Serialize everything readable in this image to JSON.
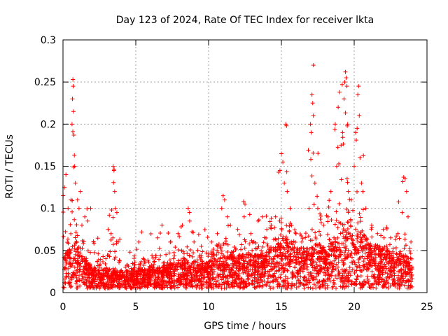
{
  "chart_data": {
    "type": "scatter",
    "title": "Day 123 of 2024, Rate Of TEC Index for receiver lkta",
    "xlabel": "GPS time / hours",
    "ylabel": "ROTI / TECUs",
    "xlim": [
      0,
      25
    ],
    "ylim": [
      0,
      0.3
    ],
    "x_ticks": [
      0,
      5,
      10,
      15,
      20,
      25
    ],
    "x_tick_labels": [
      "0",
      "5",
      "10",
      "15",
      "20",
      "25"
    ],
    "y_ticks": [
      0,
      0.05,
      0.1,
      0.15,
      0.2,
      0.25,
      0.3
    ],
    "y_tick_labels": [
      "0",
      "0.05",
      "0.1",
      "0.15",
      "0.2",
      "0.25",
      "0.3"
    ],
    "grid": true,
    "marker": "+",
    "marker_color": "#ff0000",
    "x_span_hours": [
      0,
      24
    ],
    "envelope": [
      {
        "x": 0.0,
        "low": 0.005,
        "typ": 0.03,
        "max": 0.12
      },
      {
        "x": 0.5,
        "low": 0.005,
        "typ": 0.035,
        "max": 0.15
      },
      {
        "x": 0.7,
        "low": 0.005,
        "typ": 0.04,
        "max": 0.25
      },
      {
        "x": 1.0,
        "low": 0.005,
        "typ": 0.035,
        "max": 0.12
      },
      {
        "x": 2.0,
        "low": 0.005,
        "typ": 0.02,
        "max": 0.09
      },
      {
        "x": 3.0,
        "low": 0.005,
        "typ": 0.02,
        "max": 0.07
      },
      {
        "x": 3.5,
        "low": 0.005,
        "typ": 0.02,
        "max": 0.15
      },
      {
        "x": 4.0,
        "low": 0.005,
        "typ": 0.018,
        "max": 0.05
      },
      {
        "x": 6.0,
        "low": 0.005,
        "typ": 0.02,
        "max": 0.07
      },
      {
        "x": 8.0,
        "low": 0.005,
        "typ": 0.025,
        "max": 0.08
      },
      {
        "x": 8.5,
        "low": 0.005,
        "typ": 0.025,
        "max": 0.1
      },
      {
        "x": 10.0,
        "low": 0.005,
        "typ": 0.025,
        "max": 0.07
      },
      {
        "x": 11.0,
        "low": 0.005,
        "typ": 0.03,
        "max": 0.11
      },
      {
        "x": 12.0,
        "low": 0.005,
        "typ": 0.03,
        "max": 0.08
      },
      {
        "x": 12.5,
        "low": 0.005,
        "typ": 0.03,
        "max": 0.11
      },
      {
        "x": 13.5,
        "low": 0.005,
        "typ": 0.03,
        "max": 0.09
      },
      {
        "x": 15.0,
        "low": 0.005,
        "typ": 0.04,
        "max": 0.16
      },
      {
        "x": 15.3,
        "low": 0.005,
        "typ": 0.045,
        "max": 0.2
      },
      {
        "x": 16.0,
        "low": 0.005,
        "typ": 0.035,
        "max": 0.08
      },
      {
        "x": 17.0,
        "low": 0.005,
        "typ": 0.035,
        "max": 0.19
      },
      {
        "x": 17.2,
        "low": 0.005,
        "typ": 0.04,
        "max": 0.27
      },
      {
        "x": 18.0,
        "low": 0.005,
        "typ": 0.035,
        "max": 0.1
      },
      {
        "x": 19.0,
        "low": 0.005,
        "typ": 0.045,
        "max": 0.24
      },
      {
        "x": 19.5,
        "low": 0.005,
        "typ": 0.05,
        "max": 0.26
      },
      {
        "x": 20.0,
        "low": 0.005,
        "typ": 0.045,
        "max": 0.16
      },
      {
        "x": 20.3,
        "low": 0.005,
        "typ": 0.05,
        "max": 0.25
      },
      {
        "x": 21.0,
        "low": 0.005,
        "typ": 0.04,
        "max": 0.09
      },
      {
        "x": 22.0,
        "low": 0.005,
        "typ": 0.035,
        "max": 0.08
      },
      {
        "x": 23.5,
        "low": 0.005,
        "typ": 0.03,
        "max": 0.14
      },
      {
        "x": 24.0,
        "low": 0.005,
        "typ": 0.025,
        "max": 0.06
      }
    ],
    "points": [
      [
        0.1,
        0.125
      ],
      [
        0.2,
        0.14
      ],
      [
        0.35,
        0.1
      ],
      [
        0.55,
        0.11
      ],
      [
        0.62,
        0.2
      ],
      [
        0.65,
        0.23
      ],
      [
        0.68,
        0.253
      ],
      [
        0.7,
        0.245
      ],
      [
        0.72,
        0.215
      ],
      [
        0.75,
        0.187
      ],
      [
        0.78,
        0.163
      ],
      [
        0.8,
        0.15
      ],
      [
        0.85,
        0.13
      ],
      [
        1.0,
        0.11
      ],
      [
        1.1,
        0.1
      ],
      [
        1.2,
        0.12
      ],
      [
        1.3,
        0.08
      ],
      [
        1.5,
        0.09
      ],
      [
        1.7,
        0.085
      ],
      [
        1.9,
        0.1
      ],
      [
        2.1,
        0.06
      ],
      [
        2.5,
        0.03
      ],
      [
        3.1,
        0.075
      ],
      [
        3.3,
        0.07
      ],
      [
        3.45,
        0.15
      ],
      [
        3.5,
        0.145
      ],
      [
        3.55,
        0.12
      ],
      [
        3.6,
        0.1
      ],
      [
        3.7,
        0.095
      ],
      [
        3.8,
        0.06
      ],
      [
        4.6,
        0.048
      ],
      [
        5.2,
        0.06
      ],
      [
        5.4,
        0.072
      ],
      [
        6.5,
        0.065
      ],
      [
        6.8,
        0.08
      ],
      [
        7.4,
        0.06
      ],
      [
        7.9,
        0.07
      ],
      [
        8.2,
        0.08
      ],
      [
        8.6,
        0.1
      ],
      [
        8.7,
        0.085
      ],
      [
        9.0,
        0.06
      ],
      [
        9.5,
        0.055
      ],
      [
        10.2,
        0.06
      ],
      [
        10.6,
        0.07
      ],
      [
        10.9,
        0.1
      ],
      [
        11.0,
        0.115
      ],
      [
        11.1,
        0.11
      ],
      [
        11.3,
        0.09
      ],
      [
        11.5,
        0.08
      ],
      [
        12.0,
        0.075
      ],
      [
        12.4,
        0.108
      ],
      [
        12.5,
        0.105
      ],
      [
        12.9,
        0.07
      ],
      [
        13.4,
        0.085
      ],
      [
        13.7,
        0.09
      ],
      [
        14.0,
        0.075
      ],
      [
        14.3,
        0.08
      ],
      [
        14.6,
        0.09
      ],
      [
        14.9,
        0.145
      ],
      [
        15.0,
        0.165
      ],
      [
        15.1,
        0.155
      ],
      [
        15.2,
        0.13
      ],
      [
        15.3,
        0.2
      ],
      [
        15.35,
        0.198
      ],
      [
        15.4,
        0.12
      ],
      [
        15.6,
        0.1
      ],
      [
        16.0,
        0.07
      ],
      [
        16.4,
        0.06
      ],
      [
        16.9,
        0.1
      ],
      [
        17.0,
        0.2
      ],
      [
        17.05,
        0.19
      ],
      [
        17.1,
        0.235
      ],
      [
        17.15,
        0.225
      ],
      [
        17.2,
        0.27
      ],
      [
        17.3,
        0.13
      ],
      [
        17.5,
        0.1
      ],
      [
        17.9,
        0.08
      ],
      [
        18.2,
        0.09
      ],
      [
        18.4,
        0.12
      ],
      [
        18.7,
        0.2
      ],
      [
        18.8,
        0.15
      ],
      [
        18.9,
        0.22
      ],
      [
        19.0,
        0.238
      ],
      [
        19.1,
        0.175
      ],
      [
        19.2,
        0.19
      ],
      [
        19.3,
        0.23
      ],
      [
        19.35,
        0.25
      ],
      [
        19.4,
        0.262
      ],
      [
        19.45,
        0.255
      ],
      [
        19.5,
        0.245
      ],
      [
        19.55,
        0.2
      ],
      [
        19.6,
        0.12
      ],
      [
        19.8,
        0.11
      ],
      [
        20.0,
        0.15
      ],
      [
        20.1,
        0.19
      ],
      [
        20.2,
        0.195
      ],
      [
        20.25,
        0.235
      ],
      [
        20.3,
        0.245
      ],
      [
        20.35,
        0.21
      ],
      [
        20.4,
        0.16
      ],
      [
        20.5,
        0.13
      ],
      [
        20.6,
        0.12
      ],
      [
        20.8,
        0.1
      ],
      [
        21.2,
        0.08
      ],
      [
        21.6,
        0.07
      ],
      [
        22.0,
        0.075
      ],
      [
        22.5,
        0.065
      ],
      [
        23.0,
        0.07
      ],
      [
        23.3,
        0.095
      ],
      [
        23.4,
        0.137
      ],
      [
        23.5,
        0.135
      ],
      [
        23.6,
        0.12
      ],
      [
        23.7,
        0.09
      ],
      [
        23.9,
        0.06
      ]
    ]
  }
}
